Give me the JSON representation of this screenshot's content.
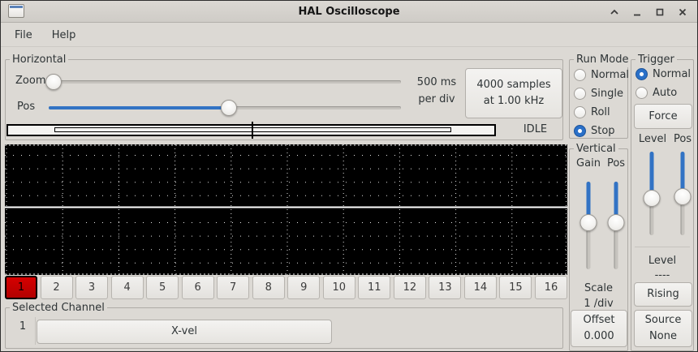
{
  "window": {
    "title": "HAL Oscilloscope"
  },
  "menu": {
    "items": [
      "File",
      "Help"
    ]
  },
  "horizontal": {
    "label": "Horizontal",
    "zoom_label": "Zoom",
    "pos_label": "Pos",
    "time_per_div": [
      "500 ms",
      "per div"
    ],
    "record_button": [
      "4000 samples",
      "at 1.00 kHz"
    ],
    "status": "IDLE"
  },
  "run_mode": {
    "label": "Run Mode",
    "options": [
      {
        "label": "Normal",
        "selected": false
      },
      {
        "label": "Single",
        "selected": false
      },
      {
        "label": "Roll",
        "selected": false
      },
      {
        "label": "Stop",
        "selected": true
      }
    ]
  },
  "vertical": {
    "label": "Vertical",
    "gain_label": "Gain",
    "pos_label": "Pos",
    "scale_label": "Scale",
    "scale_value": "1 /div",
    "offset_button": [
      "Offset",
      "0.000"
    ]
  },
  "trigger": {
    "label": "Trigger",
    "options": [
      {
        "label": "Normal",
        "selected": true
      },
      {
        "label": "Auto",
        "selected": false
      }
    ],
    "force_button": "Force",
    "level_label": "Level",
    "pos_label": "Pos",
    "level_readout_label": "Level",
    "level_readout_value": "----",
    "edge_button": "Rising",
    "source_button": [
      "Source",
      "None"
    ]
  },
  "channels": {
    "selected": "1",
    "buttons": [
      "1",
      "2",
      "3",
      "4",
      "5",
      "6",
      "7",
      "8",
      "9",
      "10",
      "11",
      "12",
      "13",
      "14",
      "15",
      "16"
    ]
  },
  "selected_channel": {
    "label": "Selected Channel",
    "number": "1",
    "name_button": "X-vel"
  },
  "icons": {
    "titlebar": [
      "window-icon",
      "shade-icon",
      "minimize-icon",
      "maximize-icon",
      "close-icon"
    ]
  },
  "colors": {
    "accent_blue": "#3273c4",
    "selected_channel_red": "#c00000",
    "scope_background": "#000000",
    "grid_dots": "#ffffff"
  }
}
